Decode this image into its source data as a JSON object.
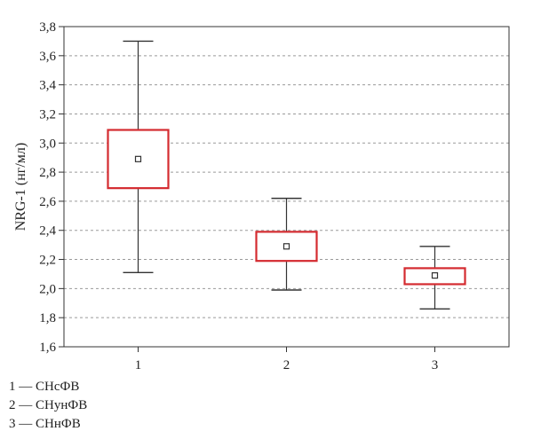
{
  "chart_data": {
    "type": "box",
    "ylabel": "NRG-1 (нг/мл)",
    "ylim": [
      1.6,
      3.8
    ],
    "ytick_values": [
      1.6,
      1.8,
      2.0,
      2.2,
      2.4,
      2.6,
      2.8,
      3.0,
      3.2,
      3.4,
      3.6,
      3.8
    ],
    "ytick_labels": [
      "1,6",
      "1,8",
      "2,0",
      "2,2",
      "2,4",
      "2,6",
      "2,8",
      "3,0",
      "3,2",
      "3,4",
      "3,6",
      "3,8"
    ],
    "grid": true,
    "categories": [
      "1",
      "2",
      "3"
    ],
    "boxes": [
      {
        "category": "1",
        "whisker_low": 2.11,
        "box_low": 2.69,
        "center": 2.89,
        "box_high": 3.09,
        "whisker_high": 3.7
      },
      {
        "category": "2",
        "whisker_low": 1.99,
        "box_low": 2.19,
        "center": 2.29,
        "box_high": 2.39,
        "whisker_high": 2.62
      },
      {
        "category": "3",
        "whisker_low": 1.86,
        "box_low": 2.03,
        "center": 2.09,
        "box_high": 2.14,
        "whisker_high": 2.29
      }
    ],
    "colors": {
      "box": "#d42b30",
      "whisker": "#333333",
      "grid": "#9a9a9a"
    }
  },
  "legend": {
    "items": [
      "1 — СНсФВ",
      "2 — СНунФВ",
      "3 — СНнФВ"
    ]
  }
}
